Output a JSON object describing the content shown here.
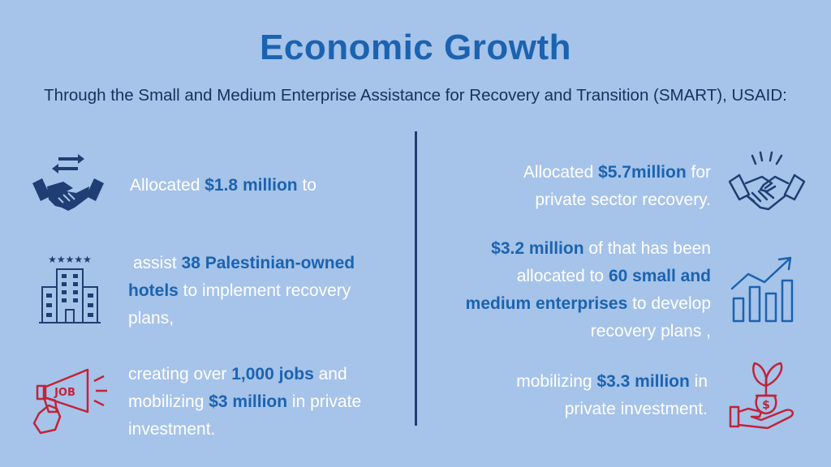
{
  "title": "Economic Growth",
  "subtitle": "Through the Small and Medium Enterprise Assistance for Recovery and Transition (SMART), USAID:",
  "left": {
    "block1": {
      "pre": "Allocated ",
      "bold": "$1.8 million",
      "post": " to"
    },
    "block2": {
      "pre": "assist ",
      "bold1": "38 Palestinian-owned",
      "bold2": "hotels",
      "post1": " to implement recovery",
      "post2": "plans,"
    },
    "block3": {
      "pre1": "creating over ",
      "bold1": "1,000 jobs",
      "post1": " and",
      "pre2": "mobilizing ",
      "bold2": "$3 million",
      "post2": " in private",
      "line3": "investment."
    }
  },
  "right": {
    "block1": {
      "pre": "Allocated ",
      "bold": "$5.7million",
      "post": " for",
      "line2": "private sector recovery."
    },
    "block2": {
      "bold1": "$3.2 million",
      "post1": " of that has been",
      "pre2": "allocated to ",
      "bold2": "60 small and",
      "bold3": "medium enterprises",
      "post3": " to develop",
      "line4": "recovery plans ,"
    },
    "block3": {
      "pre": "mobilizing ",
      "bold": "$3.3 million",
      "post": " in",
      "line2": "private investment."
    }
  },
  "icons": {
    "icon1": "handshake-arrows-icon",
    "icon2": "hotel-building-icon",
    "icon3": "job-megaphone-icon",
    "icon4": "handshake-icon",
    "icon5": "growth-chart-icon",
    "icon6": "money-plant-hand-icon",
    "hotel_stars": "★★★★★",
    "job_label": "JOB",
    "dollar": "$"
  },
  "colors": {
    "background": "#a6c3e9",
    "accent_blue": "#1b63b0",
    "navy": "#1f3e73",
    "red": "#c0243a",
    "white": "#ffffff"
  }
}
